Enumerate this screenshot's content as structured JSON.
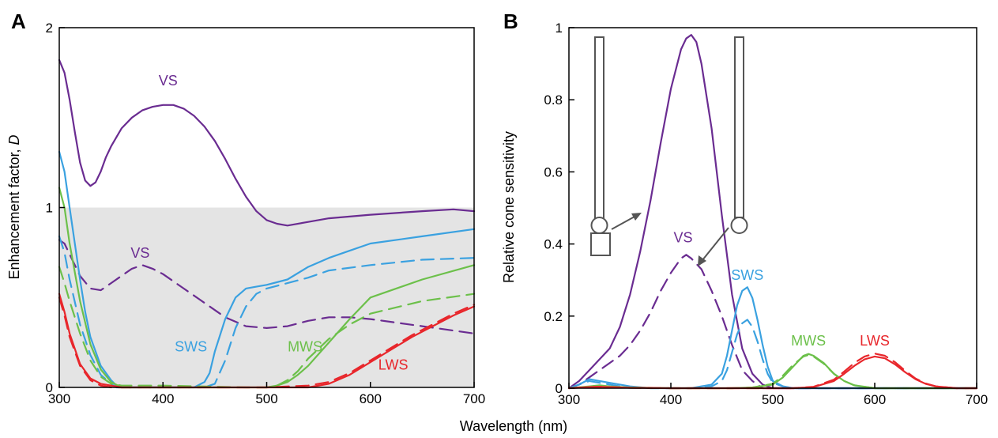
{
  "xlabel": "Wavelength (nm)",
  "chart_data": [
    {
      "panel_label": "A",
      "type": "line",
      "ylabel": "Enhancement factor, ",
      "ylabel_var": "D",
      "xlim": [
        300,
        700
      ],
      "ylim": [
        0,
        2
      ],
      "xticks": [
        300,
        400,
        500,
        600,
        700
      ],
      "yticks": [
        0,
        1,
        2
      ],
      "shaded_region": {
        "y_from": 0,
        "y_to": 1,
        "color": "#e4e4e4"
      },
      "series": [
        {
          "label": "VS",
          "color": "#6a2c91",
          "style": "solid",
          "x": [
            300,
            305,
            310,
            315,
            320,
            325,
            330,
            335,
            340,
            345,
            350,
            360,
            370,
            380,
            390,
            400,
            410,
            420,
            430,
            440,
            450,
            460,
            470,
            480,
            490,
            500,
            510,
            520,
            540,
            560,
            600,
            650,
            680,
            700
          ],
          "y": [
            1.82,
            1.75,
            1.6,
            1.42,
            1.25,
            1.15,
            1.12,
            1.14,
            1.2,
            1.28,
            1.34,
            1.44,
            1.5,
            1.54,
            1.56,
            1.57,
            1.57,
            1.55,
            1.51,
            1.45,
            1.37,
            1.27,
            1.16,
            1.06,
            0.98,
            0.93,
            0.91,
            0.9,
            0.92,
            0.94,
            0.96,
            0.98,
            0.99,
            0.98
          ]
        },
        {
          "label": "VS",
          "color": "#6a2c91",
          "style": "dashed",
          "x": [
            300,
            305,
            310,
            320,
            330,
            340,
            350,
            360,
            370,
            380,
            390,
            400,
            420,
            440,
            460,
            480,
            500,
            520,
            540,
            560,
            580,
            600,
            650,
            700
          ],
          "y": [
            0.82,
            0.8,
            0.74,
            0.62,
            0.55,
            0.54,
            0.58,
            0.62,
            0.66,
            0.68,
            0.66,
            0.63,
            0.55,
            0.47,
            0.39,
            0.34,
            0.33,
            0.34,
            0.37,
            0.39,
            0.39,
            0.38,
            0.34,
            0.3
          ]
        },
        {
          "label": "SWS",
          "color": "#3aa1e0",
          "style": "solid",
          "x": [
            300,
            305,
            310,
            315,
            320,
            325,
            330,
            340,
            350,
            355,
            360,
            380,
            400,
            430,
            440,
            445,
            450,
            460,
            470,
            480,
            490,
            500,
            520,
            540,
            560,
            580,
            600,
            650,
            700
          ],
          "y": [
            1.31,
            1.2,
            1.0,
            0.8,
            0.6,
            0.42,
            0.28,
            0.12,
            0.04,
            0.01,
            0.0,
            0.0,
            0.0,
            0.0,
            0.03,
            0.08,
            0.2,
            0.38,
            0.5,
            0.55,
            0.56,
            0.57,
            0.6,
            0.67,
            0.72,
            0.76,
            0.8,
            0.84,
            0.88
          ]
        },
        {
          "label": "SWS",
          "color": "#3aa1e0",
          "style": "dashed",
          "x": [
            300,
            305,
            310,
            320,
            330,
            340,
            350,
            355,
            360,
            400,
            440,
            450,
            460,
            470,
            480,
            490,
            500,
            520,
            540,
            560,
            600,
            650,
            700
          ],
          "y": [
            0.84,
            0.75,
            0.6,
            0.35,
            0.18,
            0.07,
            0.02,
            0.0,
            0.0,
            0.0,
            0.0,
            0.02,
            0.15,
            0.33,
            0.45,
            0.52,
            0.55,
            0.58,
            0.61,
            0.65,
            0.68,
            0.71,
            0.72
          ]
        },
        {
          "label": "MWS",
          "color": "#6cc04a",
          "style": "solid",
          "x": [
            300,
            305,
            310,
            320,
            330,
            340,
            350,
            360,
            400,
            480,
            500,
            510,
            520,
            530,
            540,
            560,
            580,
            600,
            650,
            700
          ],
          "y": [
            1.11,
            1.0,
            0.8,
            0.48,
            0.24,
            0.1,
            0.03,
            0.0,
            0.0,
            0.0,
            0.0,
            0.01,
            0.03,
            0.07,
            0.12,
            0.25,
            0.38,
            0.5,
            0.6,
            0.68
          ]
        },
        {
          "label": "MWS",
          "color": "#6cc04a",
          "style": "dashed",
          "x": [
            300,
            305,
            310,
            320,
            330,
            340,
            350,
            360,
            400,
            480,
            500,
            510,
            520,
            530,
            540,
            560,
            580,
            600,
            650,
            700
          ],
          "y": [
            0.67,
            0.58,
            0.48,
            0.3,
            0.15,
            0.06,
            0.02,
            0.01,
            0.01,
            0.0,
            0.0,
            0.01,
            0.04,
            0.09,
            0.16,
            0.27,
            0.35,
            0.41,
            0.48,
            0.52
          ]
        },
        {
          "label": "LWS",
          "color": "#e8262b",
          "style": "solid",
          "x": [
            300,
            305,
            310,
            320,
            330,
            340,
            350,
            360,
            400,
            500,
            540,
            560,
            580,
            600,
            620,
            640,
            660,
            680,
            700
          ],
          "y": [
            0.52,
            0.42,
            0.3,
            0.13,
            0.05,
            0.02,
            0.01,
            0.0,
            0.0,
            0.0,
            0.0,
            0.02,
            0.07,
            0.14,
            0.21,
            0.28,
            0.34,
            0.4,
            0.45
          ]
        },
        {
          "label": "LWS",
          "color": "#e8262b",
          "style": "dashed",
          "x": [
            300,
            305,
            310,
            320,
            330,
            340,
            350,
            360,
            400,
            500,
            540,
            560,
            580,
            600,
            620,
            640,
            660,
            680,
            700
          ],
          "y": [
            0.5,
            0.4,
            0.28,
            0.12,
            0.04,
            0.01,
            0.0,
            0.0,
            0.0,
            0.0,
            0.01,
            0.03,
            0.08,
            0.15,
            0.22,
            0.29,
            0.35,
            0.41,
            0.46
          ]
        }
      ],
      "annotations": [
        {
          "text": "VS",
          "x": 405,
          "y": 1.68,
          "color": "#6a2c91"
        },
        {
          "text": "VS",
          "x": 378,
          "y": 0.72,
          "color": "#6a2c91"
        },
        {
          "text": "SWS",
          "x": 427,
          "y": 0.2,
          "color": "#3aa1e0"
        },
        {
          "text": "MWS",
          "x": 537,
          "y": 0.2,
          "color": "#6cc04a"
        },
        {
          "text": "LWS",
          "x": 622,
          "y": 0.1,
          "color": "#e8262b"
        }
      ]
    },
    {
      "panel_label": "B",
      "type": "line",
      "ylabel": "Relative cone sensitivity",
      "xlim": [
        300,
        700
      ],
      "ylim": [
        0,
        1
      ],
      "xticks": [
        300,
        400,
        500,
        600,
        700
      ],
      "yticks": [
        0,
        0.2,
        0.4,
        0.6,
        0.8,
        1
      ],
      "ytick_labels": [
        "0",
        "0.2",
        "0.4",
        "0.6",
        "0.8",
        "1"
      ],
      "series": [
        {
          "label": "VS",
          "color": "#6a2c91",
          "style": "solid",
          "x": [
            300,
            310,
            320,
            330,
            340,
            350,
            360,
            370,
            380,
            390,
            400,
            410,
            415,
            420,
            425,
            430,
            440,
            450,
            460,
            470,
            480,
            490,
            500,
            520,
            700
          ],
          "y": [
            0.0,
            0.02,
            0.05,
            0.08,
            0.11,
            0.17,
            0.26,
            0.38,
            0.52,
            0.68,
            0.83,
            0.94,
            0.97,
            0.98,
            0.96,
            0.9,
            0.72,
            0.48,
            0.26,
            0.11,
            0.04,
            0.01,
            0.0,
            0.0,
            0.0
          ]
        },
        {
          "label": "VS",
          "color": "#6a2c91",
          "style": "dashed",
          "x": [
            300,
            310,
            320,
            330,
            340,
            350,
            360,
            370,
            380,
            390,
            400,
            410,
            415,
            420,
            430,
            440,
            450,
            460,
            470,
            480,
            490,
            500,
            700
          ],
          "y": [
            0.0,
            0.01,
            0.03,
            0.05,
            0.07,
            0.09,
            0.12,
            0.16,
            0.21,
            0.27,
            0.32,
            0.36,
            0.37,
            0.36,
            0.33,
            0.27,
            0.2,
            0.12,
            0.05,
            0.02,
            0.0,
            0.0,
            0.0
          ]
        },
        {
          "label": "SWS",
          "color": "#3aa1e0",
          "style": "solid",
          "x": [
            300,
            310,
            320,
            330,
            340,
            350,
            360,
            380,
            420,
            440,
            450,
            455,
            460,
            465,
            470,
            475,
            480,
            485,
            490,
            495,
            500,
            510,
            520,
            700
          ],
          "y": [
            0.0,
            0.01,
            0.025,
            0.02,
            0.015,
            0.01,
            0.005,
            0.0,
            0.0,
            0.01,
            0.04,
            0.09,
            0.16,
            0.23,
            0.27,
            0.28,
            0.25,
            0.19,
            0.12,
            0.06,
            0.02,
            0.005,
            0.0,
            0.0
          ]
        },
        {
          "label": "SWS",
          "color": "#3aa1e0",
          "style": "dashed",
          "x": [
            300,
            310,
            320,
            330,
            340,
            350,
            360,
            380,
            420,
            440,
            450,
            455,
            460,
            465,
            470,
            475,
            480,
            485,
            490,
            495,
            500,
            510,
            520,
            700
          ],
          "y": [
            0.0,
            0.01,
            0.02,
            0.015,
            0.01,
            0.005,
            0.003,
            0.0,
            0.0,
            0.005,
            0.02,
            0.05,
            0.1,
            0.15,
            0.18,
            0.19,
            0.17,
            0.13,
            0.08,
            0.04,
            0.015,
            0.005,
            0.0,
            0.0
          ]
        },
        {
          "label": "MWS",
          "color": "#6cc04a",
          "style": "solid",
          "x": [
            300,
            320,
            330,
            340,
            360,
            400,
            460,
            480,
            500,
            510,
            520,
            530,
            535,
            540,
            550,
            560,
            570,
            580,
            600,
            700
          ],
          "y": [
            0.0,
            0.005,
            0.008,
            0.005,
            0.002,
            0.0,
            0.0,
            0.002,
            0.01,
            0.03,
            0.06,
            0.09,
            0.095,
            0.09,
            0.07,
            0.04,
            0.02,
            0.008,
            0.0,
            0.0
          ]
        },
        {
          "label": "MWS",
          "color": "#6cc04a",
          "style": "dashed",
          "x": [
            300,
            320,
            330,
            340,
            360,
            400,
            460,
            480,
            500,
            510,
            520,
            530,
            535,
            540,
            550,
            560,
            570,
            580,
            600,
            700
          ],
          "y": [
            0.0,
            0.004,
            0.006,
            0.004,
            0.002,
            0.0,
            0.0,
            0.002,
            0.012,
            0.035,
            0.065,
            0.088,
            0.092,
            0.088,
            0.068,
            0.04,
            0.02,
            0.008,
            0.0,
            0.0
          ]
        },
        {
          "label": "LWS",
          "color": "#e8262b",
          "style": "solid",
          "x": [
            300,
            320,
            330,
            340,
            360,
            400,
            520,
            540,
            560,
            570,
            580,
            590,
            600,
            610,
            620,
            630,
            640,
            650,
            660,
            680,
            700
          ],
          "y": [
            0.0,
            0.003,
            0.004,
            0.003,
            0.001,
            0.0,
            0.0,
            0.003,
            0.02,
            0.04,
            0.062,
            0.08,
            0.088,
            0.083,
            0.066,
            0.044,
            0.025,
            0.012,
            0.005,
            0.0,
            0.0
          ]
        },
        {
          "label": "LWS",
          "color": "#e8262b",
          "style": "dashed",
          "x": [
            300,
            320,
            330,
            340,
            360,
            400,
            520,
            540,
            560,
            570,
            580,
            590,
            600,
            610,
            620,
            630,
            640,
            650,
            660,
            680,
            700
          ],
          "y": [
            0.0,
            0.003,
            0.004,
            0.003,
            0.001,
            0.0,
            0.0,
            0.004,
            0.024,
            0.046,
            0.07,
            0.088,
            0.096,
            0.09,
            0.072,
            0.048,
            0.027,
            0.013,
            0.005,
            0.0,
            0.0
          ]
        }
      ],
      "annotations": [
        {
          "text": "VS",
          "x": 412,
          "y": 0.405,
          "color": "#6a2c91"
        },
        {
          "text": "SWS",
          "x": 475,
          "y": 0.3,
          "color": "#3aa1e0"
        },
        {
          "text": "MWS",
          "x": 535,
          "y": 0.118,
          "color": "#6cc04a"
        },
        {
          "text": "LWS",
          "x": 600,
          "y": 0.118,
          "color": "#e8262b"
        }
      ]
    }
  ]
}
